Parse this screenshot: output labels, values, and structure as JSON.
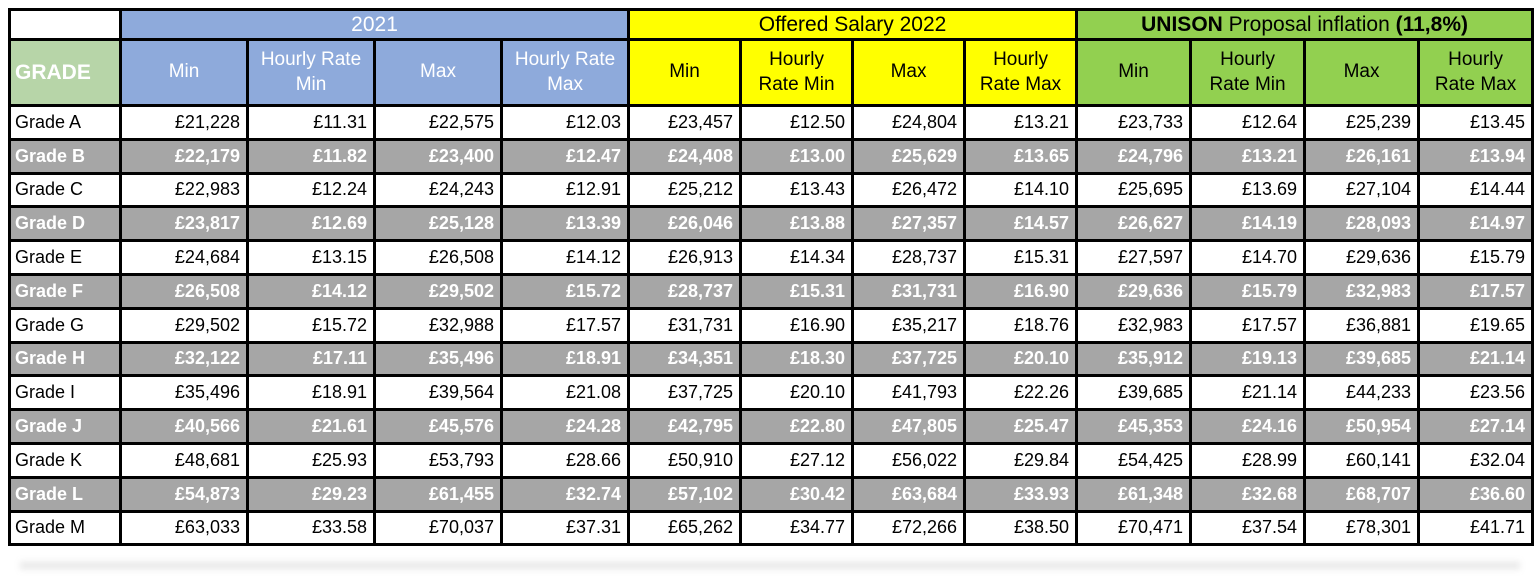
{
  "colors": {
    "section_2021_blue": "#8EAADB",
    "section_2022_yellow": "#FFFF00",
    "section_unison_green": "#92D050",
    "grade_header_green": "#B7D5A8",
    "shaded_row_gray": "#A6A6A6",
    "border_black": "#000000"
  },
  "table": {
    "corner": "",
    "grade_header": "GRADE",
    "sections": [
      {
        "title": "2021"
      },
      {
        "title": "Offered Salary 2022"
      },
      {
        "title_bold": "UNISON",
        "title_regular": " Proposal inflation ",
        "title_pct_bold": "(11,8%)"
      }
    ],
    "sub_headers": [
      "Min",
      "Hourly Rate Min",
      "Max",
      "Hourly Rate Max"
    ],
    "rows": [
      {
        "grade": "Grade A",
        "shaded": false,
        "values": [
          "£21,228",
          "£11.31",
          "£22,575",
          "£12.03",
          "£23,457",
          "£12.50",
          "£24,804",
          "£13.21",
          "£23,733",
          "£12.64",
          "£25,239",
          "£13.45"
        ]
      },
      {
        "grade": "Grade B",
        "shaded": true,
        "values": [
          "£22,179",
          "£11.82",
          "£23,400",
          "£12.47",
          "£24,408",
          "£13.00",
          "£25,629",
          "£13.65",
          "£24,796",
          "£13.21",
          "£26,161",
          "£13.94"
        ]
      },
      {
        "grade": "Grade C",
        "shaded": false,
        "values": [
          "£22,983",
          "£12.24",
          "£24,243",
          "£12.91",
          "£25,212",
          "£13.43",
          "£26,472",
          "£14.10",
          "£25,695",
          "£13.69",
          "£27,104",
          "£14.44"
        ]
      },
      {
        "grade": "Grade D",
        "shaded": true,
        "values": [
          "£23,817",
          "£12.69",
          "£25,128",
          "£13.39",
          "£26,046",
          "£13.88",
          "£27,357",
          "£14.57",
          "£26,627",
          "£14.19",
          "£28,093",
          "£14.97"
        ]
      },
      {
        "grade": "Grade E",
        "shaded": false,
        "values": [
          "£24,684",
          "£13.15",
          "£26,508",
          "£14.12",
          "£26,913",
          "£14.34",
          "£28,737",
          "£15.31",
          "£27,597",
          "£14.70",
          "£29,636",
          "£15.79"
        ]
      },
      {
        "grade": "Grade F",
        "shaded": true,
        "values": [
          "£26,508",
          "£14.12",
          "£29,502",
          "£15.72",
          "£28,737",
          "£15.31",
          "£31,731",
          "£16.90",
          "£29,636",
          "£15.79",
          "£32,983",
          "£17.57"
        ]
      },
      {
        "grade": "Grade G",
        "shaded": false,
        "values": [
          "£29,502",
          "£15.72",
          "£32,988",
          "£17.57",
          "£31,731",
          "£16.90",
          "£35,217",
          "£18.76",
          "£32,983",
          "£17.57",
          "£36,881",
          "£19.65"
        ]
      },
      {
        "grade": "Grade H",
        "shaded": true,
        "values": [
          "£32,122",
          "£17.11",
          "£35,496",
          "£18.91",
          "£34,351",
          "£18.30",
          "£37,725",
          "£20.10",
          "£35,912",
          "£19.13",
          "£39,685",
          "£21.14"
        ]
      },
      {
        "grade": "Grade I",
        "shaded": false,
        "values": [
          "£35,496",
          "£18.91",
          "£39,564",
          "£21.08",
          "£37,725",
          "£20.10",
          "£41,793",
          "£22.26",
          "£39,685",
          "£21.14",
          "£44,233",
          "£23.56"
        ]
      },
      {
        "grade": "Grade J",
        "shaded": true,
        "values": [
          "£40,566",
          "£21.61",
          "£45,576",
          "£24.28",
          "£42,795",
          "£22.80",
          "£47,805",
          "£25.47",
          "£45,353",
          "£24.16",
          "£50,954",
          "£27.14"
        ]
      },
      {
        "grade": "Grade K",
        "shaded": false,
        "values": [
          "£48,681",
          "£25.93",
          "£53,793",
          "£28.66",
          "£50,910",
          "£27.12",
          "£56,022",
          "£29.84",
          "£54,425",
          "£28.99",
          "£60,141",
          "£32.04"
        ]
      },
      {
        "grade": "Grade L",
        "shaded": true,
        "values": [
          "£54,873",
          "£29.23",
          "£61,455",
          "£32.74",
          "£57,102",
          "£30.42",
          "£63,684",
          "£33.93",
          "£61,348",
          "£32.68",
          "£68,707",
          "£36.60"
        ]
      },
      {
        "grade": "Grade M",
        "shaded": false,
        "values": [
          "£63,033",
          "£33.58",
          "£70,037",
          "£37.31",
          "£65,262",
          "£34.77",
          "£72,266",
          "£38.50",
          "£70,471",
          "£37.54",
          "£78,301",
          "£41.71"
        ]
      }
    ]
  }
}
